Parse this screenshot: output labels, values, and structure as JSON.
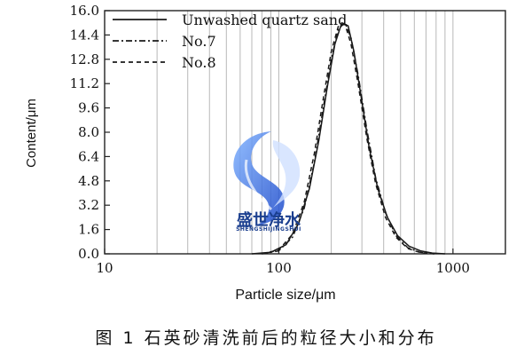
{
  "chart_data": {
    "type": "line",
    "xscale": "log",
    "xlim": [
      10,
      2000
    ],
    "ylim": [
      0,
      16
    ],
    "xlabel": "Particle size/μm",
    "ylabel": "Content/μm",
    "x_ticks": [
      10,
      100,
      1000
    ],
    "x_tick_labels": [
      "10",
      "100",
      "1000"
    ],
    "y_ticks": [
      0.0,
      1.6,
      3.2,
      4.8,
      6.4,
      8.0,
      9.6,
      11.2,
      12.8,
      14.4,
      16.0
    ],
    "y_tick_labels": [
      "0.0",
      "1.6",
      "3.2",
      "4.8",
      "6.4",
      "8.0",
      "9.6",
      "11.2",
      "12.8",
      "14.4",
      "16.0"
    ],
    "grid": "vertical log gridlines",
    "legend_position": "top-left",
    "series": [
      {
        "name": "Unwashed quartz sand",
        "style": "solid",
        "x": [
          70,
          90,
          110,
          130,
          150,
          170,
          190,
          210,
          230,
          250,
          270,
          300,
          330,
          370,
          420,
          480,
          560,
          650,
          760,
          900
        ],
        "y": [
          0,
          0.1,
          0.6,
          2.0,
          4.3,
          7.5,
          11.0,
          13.8,
          15.2,
          15.0,
          13.3,
          10.0,
          7.0,
          4.3,
          2.4,
          1.2,
          0.5,
          0.2,
          0.05,
          0
        ]
      },
      {
        "name": "No.7",
        "style": "dash-dot",
        "x": [
          80,
          100,
          120,
          140,
          160,
          180,
          200,
          220,
          240,
          260,
          285,
          320,
          360,
          410,
          470,
          550,
          650,
          780
        ],
        "y": [
          0,
          0.2,
          1.1,
          3.0,
          6.0,
          9.6,
          12.8,
          14.8,
          15.2,
          14.2,
          11.8,
          8.2,
          5.0,
          2.7,
          1.2,
          0.4,
          0.1,
          0
        ]
      },
      {
        "name": "No.8",
        "style": "dashed",
        "x": [
          80,
          100,
          120,
          140,
          160,
          180,
          200,
          220,
          240,
          260,
          285,
          320,
          360,
          410,
          470,
          550,
          650,
          780
        ],
        "y": [
          0,
          0.25,
          1.3,
          3.4,
          6.6,
          10.2,
          13.3,
          15.0,
          15.1,
          13.8,
          11.2,
          7.6,
          4.6,
          2.4,
          1.1,
          0.35,
          0.08,
          0
        ]
      }
    ]
  },
  "watermark": {
    "name": "盛世净水",
    "sub": "SHENGSHIJINGSHUI"
  },
  "caption": "图 1    石英砂清洗前后的粒径大小和分布"
}
